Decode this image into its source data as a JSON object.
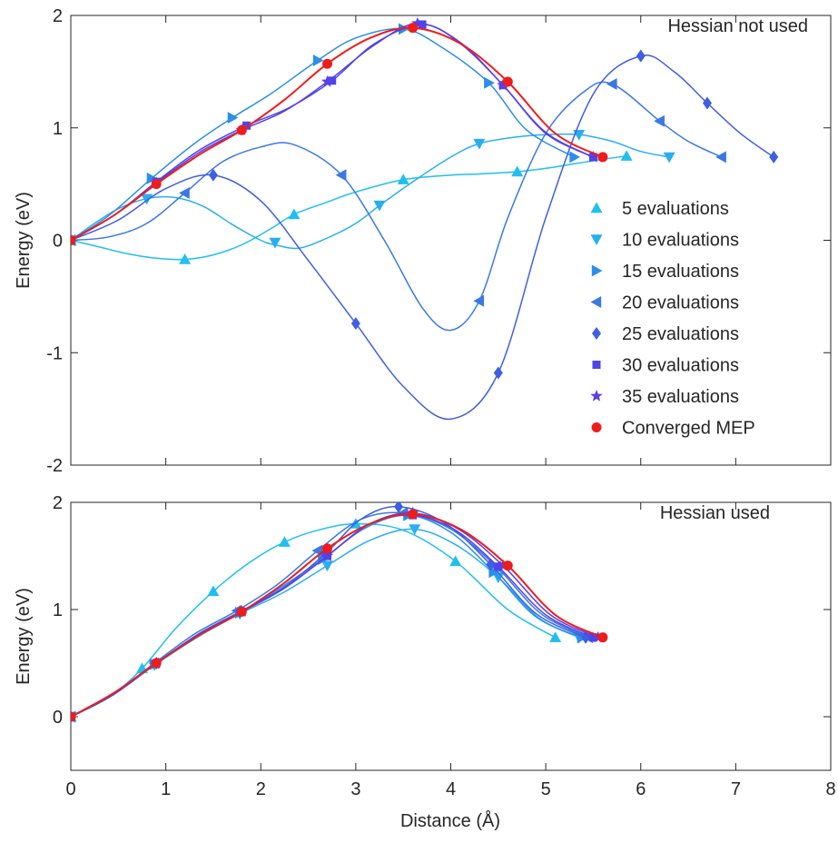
{
  "chart_data": [
    {
      "type": "line",
      "panel": "top",
      "annotation": "Hessian not used",
      "xlabel": "",
      "ylabel": "Energy (eV)",
      "xlim": [
        0,
        8
      ],
      "ylim": [
        -2,
        2
      ],
      "xticks": [
        0,
        1,
        2,
        3,
        4,
        5,
        6,
        7,
        8
      ],
      "yticks": [
        -2,
        -1,
        0,
        1,
        2
      ],
      "grid": false,
      "legend_position": "right",
      "series": [
        {
          "name": "5 evaluations",
          "marker": "triangle-up",
          "color": "#1fbff0",
          "x": [
            0,
            1.2,
            2.35,
            3.5,
            4.7,
            5.85
          ],
          "y": [
            0,
            -0.17,
            0.23,
            0.54,
            0.61,
            0.75
          ],
          "curve_x": [
            0,
            0.3,
            0.6,
            0.9,
            1.2,
            1.5,
            1.8,
            2.1,
            2.35,
            2.7,
            3.0,
            3.5,
            4.0,
            4.3,
            4.7,
            5.0,
            5.3,
            5.6,
            5.85
          ],
          "curve_y": [
            0,
            -0.06,
            -0.12,
            -0.16,
            -0.17,
            -0.13,
            -0.04,
            0.1,
            0.23,
            0.34,
            0.43,
            0.54,
            0.58,
            0.59,
            0.61,
            0.64,
            0.68,
            0.72,
            0.75
          ]
        },
        {
          "name": "10 evaluations",
          "marker": "triangle-down",
          "color": "#28aef0",
          "x": [
            0,
            0.8,
            2.15,
            3.25,
            4.3,
            5.35,
            6.3
          ],
          "y": [
            0,
            0.37,
            -0.02,
            0.31,
            0.86,
            0.94,
            0.74
          ],
          "curve_x": [
            0,
            0.25,
            0.5,
            0.8,
            1.1,
            1.4,
            1.7,
            2.0,
            2.15,
            2.4,
            2.7,
            3.0,
            3.25,
            3.6,
            4.0,
            4.3,
            4.7,
            5.0,
            5.35,
            5.7,
            6.0,
            6.3
          ],
          "curve_y": [
            0,
            0.15,
            0.28,
            0.37,
            0.38,
            0.3,
            0.14,
            0.0,
            -0.04,
            -0.07,
            0.02,
            0.15,
            0.31,
            0.52,
            0.74,
            0.86,
            0.92,
            0.94,
            0.94,
            0.88,
            0.79,
            0.74
          ]
        },
        {
          "name": "15 evaluations",
          "marker": "triangle-right",
          "color": "#2c8ee8",
          "x": [
            0,
            0.85,
            1.7,
            2.6,
            3.5,
            4.4,
            5.3
          ],
          "y": [
            0,
            0.55,
            1.09,
            1.6,
            1.88,
            1.4,
            0.74
          ],
          "curve_x": [
            0,
            0.4,
            0.85,
            1.3,
            1.7,
            2.1,
            2.6,
            3.0,
            3.5,
            3.9,
            4.4,
            4.8,
            5.3
          ],
          "curve_y": [
            0,
            0.22,
            0.55,
            0.86,
            1.09,
            1.3,
            1.6,
            1.8,
            1.88,
            1.72,
            1.4,
            0.98,
            0.74
          ]
        },
        {
          "name": "20 evaluations",
          "marker": "triangle-left",
          "color": "#3b78e4",
          "x": [
            0,
            1.2,
            2.85,
            4.3,
            5.7,
            6.2,
            6.85
          ],
          "y": [
            0,
            0.42,
            0.58,
            -0.54,
            1.39,
            1.06,
            0.74
          ],
          "curve_x": [
            0,
            0.4,
            0.8,
            1.2,
            1.6,
            2.0,
            2.35,
            2.85,
            3.3,
            3.7,
            4.0,
            4.3,
            4.6,
            5.0,
            5.4,
            5.7,
            6.2,
            6.5,
            6.85
          ],
          "curve_y": [
            0,
            0.03,
            0.15,
            0.42,
            0.7,
            0.83,
            0.85,
            0.58,
            0.0,
            -0.6,
            -0.8,
            -0.54,
            0.2,
            0.95,
            1.32,
            1.39,
            1.06,
            0.88,
            0.74
          ]
        },
        {
          "name": "25 evaluations",
          "marker": "diamond",
          "color": "#3f5fe0",
          "x": [
            0,
            1.5,
            3.0,
            4.5,
            6.0,
            6.7,
            7.4
          ],
          "y": [
            0,
            0.58,
            -0.74,
            -1.18,
            1.64,
            1.22,
            0.74
          ],
          "curve_x": [
            0,
            0.5,
            1.0,
            1.5,
            2.0,
            2.5,
            3.0,
            3.5,
            4.0,
            4.5,
            5.0,
            5.5,
            6.0,
            6.35,
            6.7,
            7.05,
            7.4
          ],
          "curve_y": [
            0,
            0.18,
            0.46,
            0.58,
            0.35,
            -0.18,
            -0.74,
            -1.3,
            -1.59,
            -1.18,
            0.2,
            1.3,
            1.64,
            1.5,
            1.22,
            0.95,
            0.74
          ]
        },
        {
          "name": "30 evaluations",
          "marker": "square",
          "color": "#4a46ec",
          "x": [
            0,
            0.9,
            1.85,
            2.75,
            3.7,
            4.55,
            5.5
          ],
          "y": [
            0,
            0.52,
            1.02,
            1.42,
            1.92,
            1.38,
            0.74
          ],
          "curve_x": [
            0,
            0.45,
            0.9,
            1.35,
            1.85,
            2.3,
            2.75,
            3.2,
            3.7,
            4.1,
            4.55,
            5.0,
            5.5
          ],
          "curve_y": [
            0,
            0.22,
            0.52,
            0.8,
            1.02,
            1.18,
            1.42,
            1.75,
            1.92,
            1.75,
            1.38,
            0.95,
            0.74
          ]
        },
        {
          "name": "35 evaluations",
          "marker": "star",
          "color": "#5a3ee6",
          "x": [
            0,
            0.9,
            1.8,
            2.7,
            3.65,
            4.55,
            5.5
          ],
          "y": [
            0,
            0.51,
            0.98,
            1.41,
            1.93,
            1.38,
            0.74
          ],
          "curve_x": [
            0,
            0.45,
            0.9,
            1.35,
            1.8,
            2.25,
            2.7,
            3.2,
            3.65,
            4.1,
            4.55,
            5.0,
            5.5
          ],
          "curve_y": [
            0,
            0.22,
            0.51,
            0.78,
            0.98,
            1.15,
            1.41,
            1.74,
            1.93,
            1.76,
            1.38,
            0.96,
            0.74
          ]
        },
        {
          "name": "Converged MEP",
          "marker": "circle",
          "color": "#ee1c1c",
          "x": [
            0,
            0.9,
            1.8,
            2.7,
            3.6,
            4.6,
            5.6
          ],
          "y": [
            0,
            0.5,
            0.98,
            1.57,
            1.89,
            1.41,
            0.74
          ],
          "curve_x": [
            0,
            0.45,
            0.9,
            1.35,
            1.8,
            2.25,
            2.7,
            3.15,
            3.6,
            4.1,
            4.6,
            5.1,
            5.6
          ],
          "curve_y": [
            0,
            0.22,
            0.5,
            0.76,
            0.98,
            1.25,
            1.57,
            1.8,
            1.89,
            1.75,
            1.41,
            0.95,
            0.74
          ]
        }
      ]
    },
    {
      "type": "line",
      "panel": "bottom",
      "annotation": "Hessian used",
      "xlabel": "Distance (Å)",
      "ylabel": "Energy (eV)",
      "xlim": [
        0,
        8
      ],
      "ylim": [
        -0.5,
        2
      ],
      "xticks": [
        0,
        1,
        2,
        3,
        4,
        5,
        6,
        7,
        8
      ],
      "yticks": [
        0,
        1,
        2
      ],
      "grid": false,
      "series": [
        {
          "name": "5 evaluations",
          "marker": "triangle-up",
          "color": "#1fbff0",
          "x": [
            0,
            0.75,
            1.5,
            2.25,
            3.0,
            4.05,
            5.1
          ],
          "y": [
            0,
            0.45,
            1.17,
            1.63,
            1.8,
            1.45,
            0.74
          ],
          "curve_x": [
            0,
            0.4,
            0.75,
            1.1,
            1.5,
            1.9,
            2.25,
            2.6,
            3.0,
            3.5,
            4.05,
            4.6,
            5.1
          ],
          "curve_y": [
            0,
            0.18,
            0.45,
            0.82,
            1.17,
            1.45,
            1.63,
            1.74,
            1.8,
            1.74,
            1.45,
            1.0,
            0.74
          ]
        },
        {
          "name": "10 evaluations",
          "marker": "triangle-down",
          "color": "#28aef0",
          "x": [
            0,
            0.88,
            1.78,
            2.7,
            3.62,
            4.5,
            5.35
          ],
          "y": [
            0,
            0.48,
            0.96,
            1.41,
            1.75,
            1.3,
            0.74
          ],
          "curve_x": [
            0,
            0.44,
            0.88,
            1.33,
            1.78,
            2.24,
            2.7,
            3.16,
            3.62,
            4.06,
            4.5,
            4.93,
            5.35
          ],
          "curve_y": [
            0,
            0.2,
            0.48,
            0.74,
            0.96,
            1.16,
            1.41,
            1.65,
            1.75,
            1.6,
            1.3,
            0.92,
            0.74
          ]
        },
        {
          "name": "15 evaluations",
          "marker": "triangle-right",
          "color": "#2c8ee8",
          "x": [
            0,
            0.88,
            1.78,
            2.65,
            3.55,
            4.45,
            5.38
          ],
          "y": [
            0,
            0.49,
            0.97,
            1.47,
            1.88,
            1.35,
            0.74
          ],
          "curve_x": [
            0,
            0.44,
            0.88,
            1.33,
            1.78,
            2.2,
            2.65,
            3.1,
            3.55,
            4.0,
            4.45,
            4.9,
            5.38
          ],
          "curve_y": [
            0,
            0.2,
            0.49,
            0.75,
            0.97,
            1.2,
            1.47,
            1.76,
            1.88,
            1.72,
            1.35,
            0.93,
            0.74
          ]
        },
        {
          "name": "20 evaluations",
          "marker": "triangle-left",
          "color": "#3b78e4",
          "x": [
            0,
            0.88,
            1.75,
            2.6,
            3.5,
            4.48,
            5.45
          ],
          "y": [
            0,
            0.5,
            0.99,
            1.55,
            1.9,
            1.4,
            0.74
          ],
          "curve_x": [
            0,
            0.44,
            0.88,
            1.3,
            1.75,
            2.17,
            2.6,
            3.05,
            3.5,
            4.0,
            4.48,
            4.95,
            5.45
          ],
          "curve_y": [
            0,
            0.21,
            0.5,
            0.77,
            0.99,
            1.23,
            1.55,
            1.84,
            1.9,
            1.75,
            1.4,
            0.96,
            0.74
          ]
        },
        {
          "name": "25 evaluations",
          "marker": "diamond",
          "color": "#3f5fe0",
          "x": [
            0,
            0.9,
            1.78,
            2.68,
            3.45,
            4.42,
            5.42
          ],
          "y": [
            0,
            0.5,
            0.98,
            1.52,
            1.96,
            1.42,
            0.74
          ],
          "curve_x": [
            0,
            0.45,
            0.9,
            1.34,
            1.78,
            2.23,
            2.68,
            3.05,
            3.45,
            3.95,
            4.42,
            4.9,
            5.42
          ],
          "curve_y": [
            0,
            0.21,
            0.5,
            0.77,
            0.98,
            1.2,
            1.52,
            1.84,
            1.96,
            1.8,
            1.42,
            0.96,
            0.74
          ]
        },
        {
          "name": "30 evaluations",
          "marker": "square",
          "color": "#4a46ec",
          "x": [
            0,
            0.9,
            1.8,
            2.7,
            3.6,
            4.5,
            5.5
          ],
          "y": [
            0,
            0.5,
            0.98,
            1.5,
            1.88,
            1.4,
            0.74
          ],
          "curve_x": [
            0,
            0.45,
            0.9,
            1.35,
            1.8,
            2.25,
            2.7,
            3.15,
            3.6,
            4.05,
            4.5,
            5.0,
            5.5
          ],
          "curve_y": [
            0,
            0.21,
            0.5,
            0.77,
            0.98,
            1.2,
            1.5,
            1.8,
            1.88,
            1.74,
            1.4,
            0.95,
            0.74
          ]
        },
        {
          "name": "35 evaluations",
          "marker": "star",
          "color": "#5a3ee6",
          "x": [
            0,
            0.9,
            1.8,
            2.7,
            3.6,
            4.55,
            5.55
          ],
          "y": [
            0,
            0.5,
            0.98,
            1.5,
            1.9,
            1.41,
            0.74
          ],
          "curve_x": [
            0,
            0.45,
            0.9,
            1.35,
            1.8,
            2.25,
            2.7,
            3.15,
            3.6,
            4.08,
            4.55,
            5.05,
            5.55
          ],
          "curve_y": [
            0,
            0.21,
            0.5,
            0.77,
            0.98,
            1.2,
            1.5,
            1.8,
            1.9,
            1.75,
            1.41,
            0.95,
            0.74
          ]
        },
        {
          "name": "Converged MEP",
          "marker": "circle",
          "color": "#ee1c1c",
          "x": [
            0,
            0.9,
            1.8,
            2.7,
            3.6,
            4.6,
            5.6
          ],
          "y": [
            0,
            0.5,
            0.98,
            1.57,
            1.89,
            1.41,
            0.74
          ],
          "curve_x": [
            0,
            0.45,
            0.9,
            1.35,
            1.8,
            2.25,
            2.7,
            3.15,
            3.6,
            4.1,
            4.6,
            5.1,
            5.6
          ],
          "curve_y": [
            0,
            0.22,
            0.5,
            0.76,
            0.98,
            1.25,
            1.57,
            1.8,
            1.89,
            1.75,
            1.41,
            0.95,
            0.74
          ]
        }
      ]
    }
  ]
}
